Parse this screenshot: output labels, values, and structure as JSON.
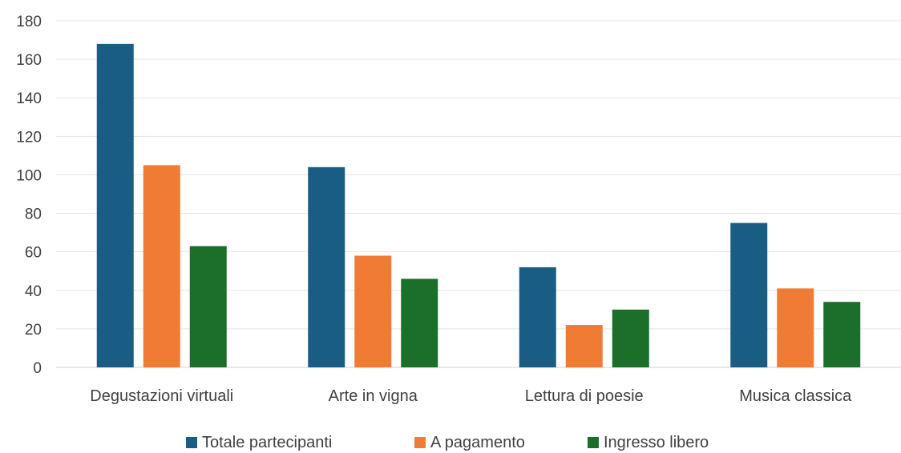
{
  "chart_data": {
    "type": "bar",
    "title": "",
    "xlabel": "",
    "ylabel": "",
    "categories": [
      "Degustazioni virtuali",
      "Arte in vigna",
      "Lettura di poesie",
      "Musica classica"
    ],
    "series": [
      {
        "name": "Totale partecipanti",
        "color": "#1a5d84",
        "values": [
          168,
          104,
          52,
          75
        ]
      },
      {
        "name": "A pagamento",
        "color": "#ef7b35",
        "values": [
          105,
          58,
          22,
          41
        ]
      },
      {
        "name": "Ingresso libero",
        "color": "#1b6f2b",
        "values": [
          63,
          46,
          30,
          34
        ]
      }
    ],
    "ylim": [
      0,
      180
    ],
    "yticks": [
      "0",
      "20",
      "40",
      "60",
      "80",
      "100",
      "120",
      "140",
      "160",
      "180"
    ],
    "grid": true,
    "legend_position": "bottom"
  }
}
